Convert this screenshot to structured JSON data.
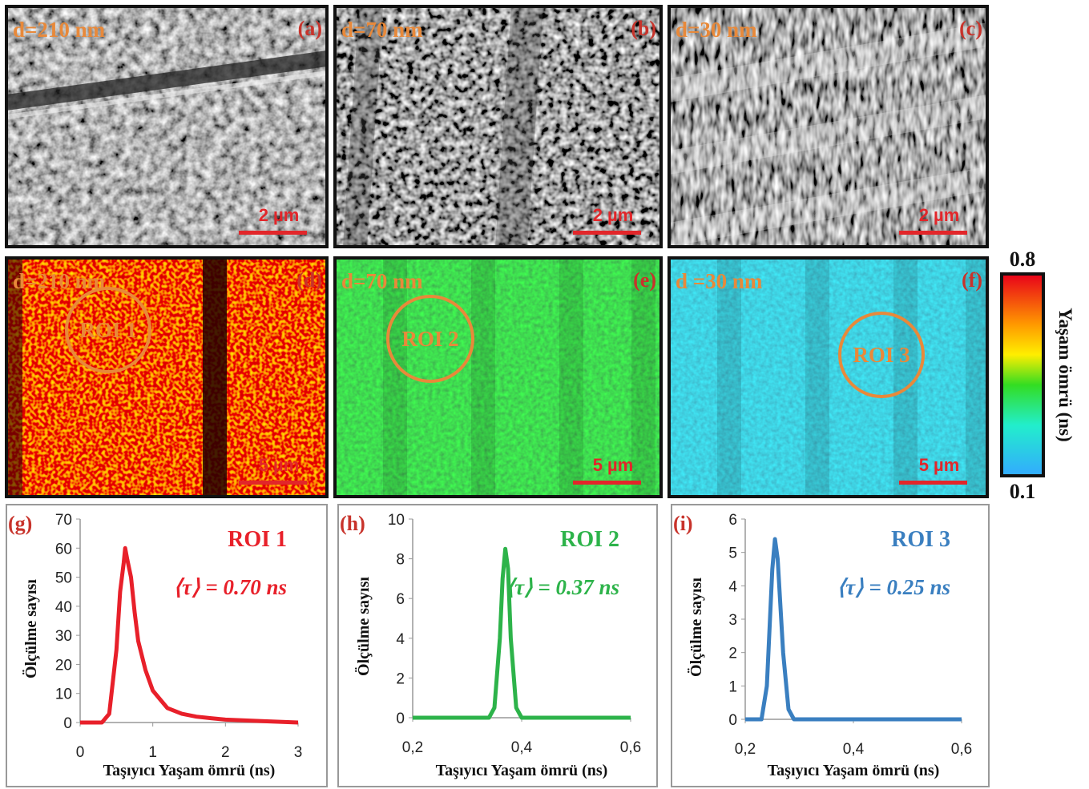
{
  "panels": [
    {
      "label": "d=210 nm",
      "letter": "(a)",
      "scale_bar": "2 µm"
    },
    {
      "label": "d=70 nm",
      "letter": "(b)",
      "scale_bar": "2 µm"
    },
    {
      "label": "d=30 nm",
      "letter": "(c)",
      "scale_bar": "2 µm"
    },
    {
      "label": "d=210 nm",
      "letter": "(d)",
      "scale_bar": "5 µm",
      "roi": "ROI 1"
    },
    {
      "label": "d=70 nm",
      "letter": "(e)",
      "scale_bar": "5 µm",
      "roi": "ROI 2"
    },
    {
      "label": "d =30 nm",
      "letter": "(f)",
      "scale_bar": "5 µm",
      "roi": "ROI 3"
    }
  ],
  "colorbar": {
    "max": "0.8",
    "min": "0.1",
    "label": "Yaşam ömrü (ns)"
  },
  "chart_data": [
    {
      "type": "line",
      "panel_label": "(g)",
      "annotation": "ROI 1",
      "mean_lifetime": "⟨τ⟩ = 0.70 ns",
      "xlabel": "Taşıyıcı Yaşam ömrü (ns)",
      "ylabel": "Ölçülme sayısı",
      "color": "#e8202a",
      "x": [
        0,
        0.3,
        0.4,
        0.5,
        0.55,
        0.6,
        0.62,
        0.65,
        0.7,
        0.75,
        0.8,
        0.9,
        1.0,
        1.1,
        1.2,
        1.4,
        1.6,
        1.8,
        2.0,
        2.5,
        3.0
      ],
      "values": [
        0,
        0,
        3,
        25,
        45,
        55,
        60,
        56,
        50,
        38,
        28,
        18,
        11,
        8,
        5,
        3,
        2,
        1.5,
        1,
        0.5,
        0
      ],
      "xlim": [
        0,
        3
      ],
      "ylim": [
        0,
        70
      ],
      "xticks": [
        0,
        1,
        2,
        3
      ],
      "yticks": [
        0,
        10,
        20,
        30,
        40,
        50,
        60,
        70
      ]
    },
    {
      "type": "line",
      "panel_label": "(h)",
      "annotation": "ROI 2",
      "mean_lifetime": "⟨τ⟩ = 0.37 ns",
      "xlabel": "Taşıyıcı Yaşam ömrü (ns)",
      "ylabel": "Ölçülme sayısı",
      "color": "#2db34a",
      "x": [
        0.2,
        0.34,
        0.35,
        0.36,
        0.365,
        0.37,
        0.375,
        0.38,
        0.39,
        0.4,
        0.6
      ],
      "values": [
        0,
        0,
        0.5,
        4,
        7,
        8.5,
        7.5,
        4,
        0.5,
        0,
        0
      ],
      "xlim": [
        0.2,
        0.6
      ],
      "ylim": [
        0,
        10
      ],
      "xticks": [
        {
          "value": 0.2,
          "label": "0,2"
        },
        {
          "value": 0.4,
          "label": "0,4"
        },
        {
          "value": 0.6,
          "label": "0,6"
        }
      ],
      "yticks": [
        0,
        2,
        4,
        6,
        8,
        10
      ]
    },
    {
      "type": "line",
      "panel_label": "(i)",
      "annotation": "ROI 3",
      "mean_lifetime": "⟨τ⟩ = 0.25 ns",
      "xlabel": "Taşıyıcı Yaşam ömrü (ns)",
      "ylabel": "Ölçülme sayısı",
      "color": "#3a7fc0",
      "x": [
        0.2,
        0.23,
        0.24,
        0.25,
        0.255,
        0.26,
        0.27,
        0.28,
        0.29,
        0.6
      ],
      "values": [
        0,
        0,
        1,
        4.5,
        5.4,
        4.8,
        2,
        0.3,
        0,
        0
      ],
      "xlim": [
        0.2,
        0.6
      ],
      "ylim": [
        0,
        6
      ],
      "xticks": [
        {
          "value": 0.2,
          "label": "0,2"
        },
        {
          "value": 0.4,
          "label": "0,4"
        },
        {
          "value": 0.6,
          "label": "0,6"
        }
      ],
      "yticks": [
        0,
        1,
        2,
        3,
        4,
        5,
        6
      ]
    }
  ]
}
